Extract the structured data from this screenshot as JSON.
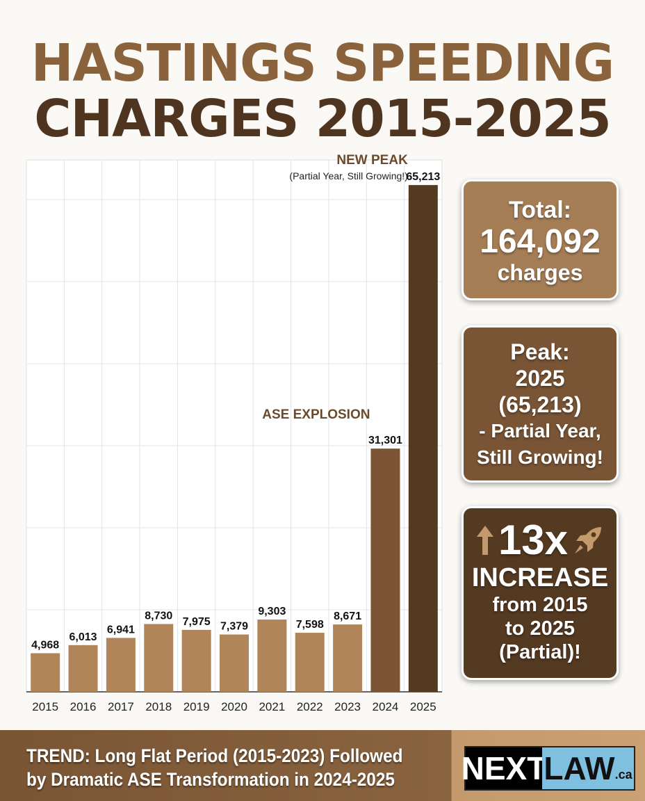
{
  "title_line1": "HASTINGS SPEEDING",
  "title_line2": "CHARGES 2015-2025",
  "chart_data": {
    "type": "bar",
    "title": "HASTINGS SPEEDING CHARGES 2015-2025",
    "categories": [
      "2015",
      "2016",
      "2017",
      "2018",
      "2019",
      "2020",
      "2021",
      "2022",
      "2023",
      "2024",
      "2025"
    ],
    "values": [
      4968,
      6013,
      6941,
      8730,
      7975,
      7379,
      9303,
      7598,
      8671,
      31301,
      65213
    ],
    "value_labels": [
      "4,968",
      "6,013",
      "6,941",
      "8,730",
      "7,975",
      "7,379",
      "9,303",
      "7,598",
      "8,671",
      "31,301",
      "65,213"
    ],
    "bar_colors": [
      "#b08559",
      "#b08559",
      "#b08559",
      "#b08559",
      "#b08559",
      "#b08559",
      "#b08559",
      "#b08559",
      "#b08559",
      "#7b5534",
      "#553a22"
    ],
    "ylim": [
      0,
      68000
    ],
    "grid": true,
    "annotations": [
      {
        "category": "2025",
        "title": "NEW PEAK",
        "subtitle": "(Partial Year, Still Growing!)"
      },
      {
        "category": "2024",
        "title": "ASE EXPLOSION"
      }
    ]
  },
  "cards": {
    "total": {
      "label": "Total:",
      "value": "164,092",
      "unit": "charges"
    },
    "peak": {
      "lines": [
        "Peak:",
        "2025",
        "(65,213)",
        "- Partial Year,",
        "Still Growing!"
      ]
    },
    "increase": {
      "value": "13x",
      "label": "INCREASE",
      "lines": [
        "from 2015",
        "to 2025",
        "(Partial)!"
      ],
      "icons": [
        "arrow-up-icon",
        "rocket-icon"
      ]
    }
  },
  "footer": {
    "trend_line1": "TREND: Long Flat Period (2015-2023) Followed",
    "trend_line2": "by Dramatic ASE Transformation in 2024-2025",
    "logo": {
      "part1": "NEXT",
      "part2": "LAW",
      "suffix": ".ca"
    }
  },
  "colors": {
    "light_brown": "#b08559",
    "mid_brown": "#7b5534",
    "dark_brown": "#553a22",
    "logo_blue": "#7fbfe0"
  }
}
